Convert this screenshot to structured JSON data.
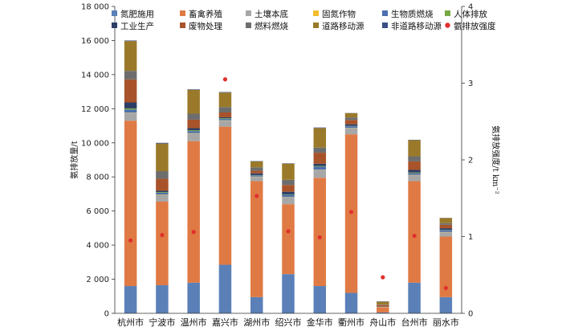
{
  "chart_data": {
    "type": "bar",
    "stacked": true,
    "categories": [
      "杭州市",
      "宁波市",
      "温州市",
      "嘉兴市",
      "湖州市",
      "绍兴市",
      "金华市",
      "衢州市",
      "舟山市",
      "台州市",
      "丽水市"
    ],
    "ylabel": "氨排放量/t",
    "y2label": "氨排放强度/t km⁻²",
    "ylim": [
      0,
      18000
    ],
    "yticks": [
      0,
      2000,
      4000,
      6000,
      8000,
      10000,
      12000,
      14000,
      16000,
      18000
    ],
    "ytick_labels": [
      "0",
      "2 000",
      "4 000",
      "6 000",
      "8 000",
      "10 000",
      "12 000",
      "14 000",
      "16 000",
      "18 000"
    ],
    "y2lim": [
      0,
      4
    ],
    "y2ticks": [
      0,
      1,
      2,
      3,
      4
    ],
    "y2tick_labels": [
      "0",
      "1",
      "2",
      "3",
      "4"
    ],
    "series": [
      {
        "name": "氮肥施用",
        "color": "#5b80b8",
        "values": [
          1600,
          1650,
          1800,
          2850,
          950,
          2300,
          1600,
          1200,
          50,
          1800,
          950
        ]
      },
      {
        "name": "畜禽养殖",
        "color": "#e07a44",
        "values": [
          9700,
          4900,
          8300,
          8100,
          6800,
          4100,
          6350,
          9300,
          300,
          5950,
          3550
        ]
      },
      {
        "name": "土壤本底",
        "color": "#a7a7a7",
        "values": [
          450,
          400,
          450,
          350,
          250,
          400,
          450,
          350,
          20,
          350,
          250
        ]
      },
      {
        "name": "固氮作物",
        "color": "#f2bd2d",
        "values": [
          20,
          20,
          20,
          20,
          20,
          20,
          20,
          20,
          5,
          20,
          20
        ]
      },
      {
        "name": "生物质燃烧",
        "color": "#4c6fb0",
        "values": [
          180,
          100,
          120,
          80,
          70,
          130,
          180,
          100,
          10,
          100,
          100
        ]
      },
      {
        "name": "人体排放",
        "color": "#77a843",
        "values": [
          70,
          40,
          50,
          40,
          20,
          30,
          40,
          20,
          5,
          40,
          20
        ]
      },
      {
        "name": "工业生产",
        "color": "#2d3e66",
        "values": [
          350,
          80,
          120,
          60,
          100,
          150,
          130,
          100,
          10,
          150,
          100
        ]
      },
      {
        "name": "废物处理",
        "color": "#a9532a",
        "values": [
          1350,
          700,
          500,
          280,
          150,
          400,
          650,
          250,
          80,
          500,
          200
        ]
      },
      {
        "name": "燃料燃烧",
        "color": "#6d6d6d",
        "values": [
          500,
          450,
          350,
          320,
          200,
          300,
          300,
          150,
          30,
          300,
          100
        ]
      },
      {
        "name": "道路移动源",
        "color": "#9a7a2a",
        "values": [
          1750,
          1620,
          1400,
          850,
          350,
          950,
          1150,
          250,
          170,
          950,
          300
        ]
      },
      {
        "name": "非道路移动源",
        "color": "#3a4f86",
        "values": [
          30,
          40,
          30,
          30,
          20,
          20,
          30,
          10,
          20,
          20,
          10
        ]
      }
    ],
    "intensity": {
      "name": "氨排放强度",
      "color": "#e0302c",
      "values": [
        0.95,
        1.02,
        1.06,
        3.05,
        1.53,
        1.07,
        0.99,
        1.32,
        0.47,
        1.01,
        0.33
      ]
    },
    "grid": false,
    "legend": "top"
  }
}
